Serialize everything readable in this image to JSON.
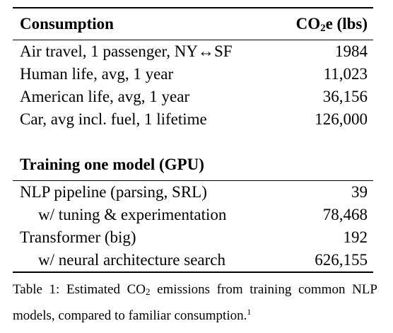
{
  "section1": {
    "header": {
      "label": "Consumption",
      "value_prefix": "CO",
      "value_sub": "2",
      "value_suffix": "e (lbs)"
    },
    "rows": [
      {
        "label": "Air travel, 1 passenger, NY↔SF",
        "value": "1984"
      },
      {
        "label": "Human life, avg, 1 year",
        "value": "11,023"
      },
      {
        "label": "American life, avg, 1 year",
        "value": "36,156"
      },
      {
        "label": "Car, avg incl. fuel, 1 lifetime",
        "value": "126,000"
      }
    ]
  },
  "section2": {
    "header": {
      "label": "Training one model (GPU)"
    },
    "rows": [
      {
        "label": "NLP pipeline (parsing, SRL)",
        "value": "39"
      },
      {
        "label": "w/ tuning & experimentation",
        "value": "78,468"
      },
      {
        "label": "Transformer (big)",
        "value": "192"
      },
      {
        "label": "w/ neural architecture search",
        "value": "626,155"
      }
    ]
  },
  "caption": {
    "part1": "Table 1: Estimated CO",
    "sub": "2",
    "part2": " emissions from training common NLP models, compared to familiar consumption.",
    "footnote": "1"
  }
}
